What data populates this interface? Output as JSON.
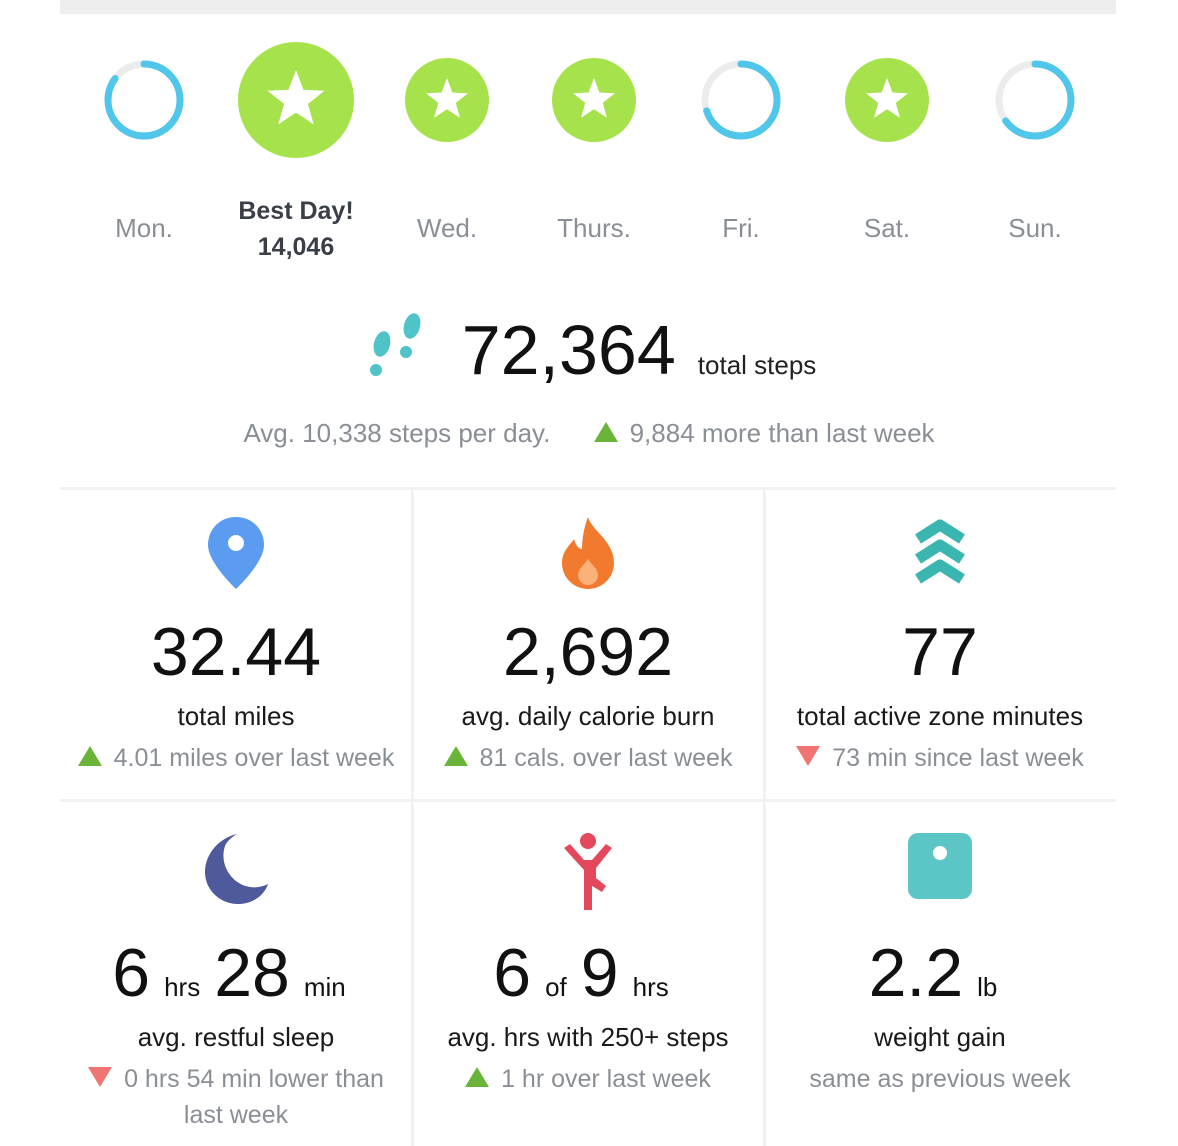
{
  "days": [
    {
      "label": "Mon.",
      "goal_met": false,
      "progress": 0.85
    },
    {
      "label": "Best Day!",
      "steps": "14,046",
      "goal_met": true,
      "best": true
    },
    {
      "label": "Wed.",
      "goal_met": true
    },
    {
      "label": "Thurs.",
      "goal_met": true
    },
    {
      "label": "Fri.",
      "goal_met": false,
      "progress": 0.7
    },
    {
      "label": "Sat.",
      "goal_met": true
    },
    {
      "label": "Sun.",
      "goal_met": false,
      "progress": 0.65
    }
  ],
  "steps": {
    "total": "72,364",
    "unit": "total steps",
    "average": "Avg. 10,338 steps per day.",
    "change": "9,884 more than last week",
    "trend": "up"
  },
  "tiles": [
    {
      "value_parts": [
        "32.44"
      ],
      "label": "total miles",
      "change": "4.01 miles over last week",
      "trend": "up"
    },
    {
      "value_parts": [
        "2,692"
      ],
      "label": "avg. daily calorie burn",
      "change": "81 cals. over last week",
      "trend": "up"
    },
    {
      "value_parts": [
        "77"
      ],
      "label": "total active zone minutes",
      "change": "73 min since last week",
      "trend": "down"
    },
    {
      "value_parts": [
        "6",
        "hrs",
        "28",
        "min"
      ],
      "label": "avg. restful sleep",
      "change": "0 hrs 54 min lower than last week",
      "trend": "down"
    },
    {
      "value_parts": [
        "6",
        "of",
        "9",
        "hrs"
      ],
      "label": "avg. hrs with 250+ steps",
      "change": "1 hr over last week",
      "trend": "up"
    },
    {
      "value_parts": [
        "2.2",
        "lb"
      ],
      "label": "weight gain",
      "change": "same as previous week",
      "trend": "none"
    }
  ]
}
